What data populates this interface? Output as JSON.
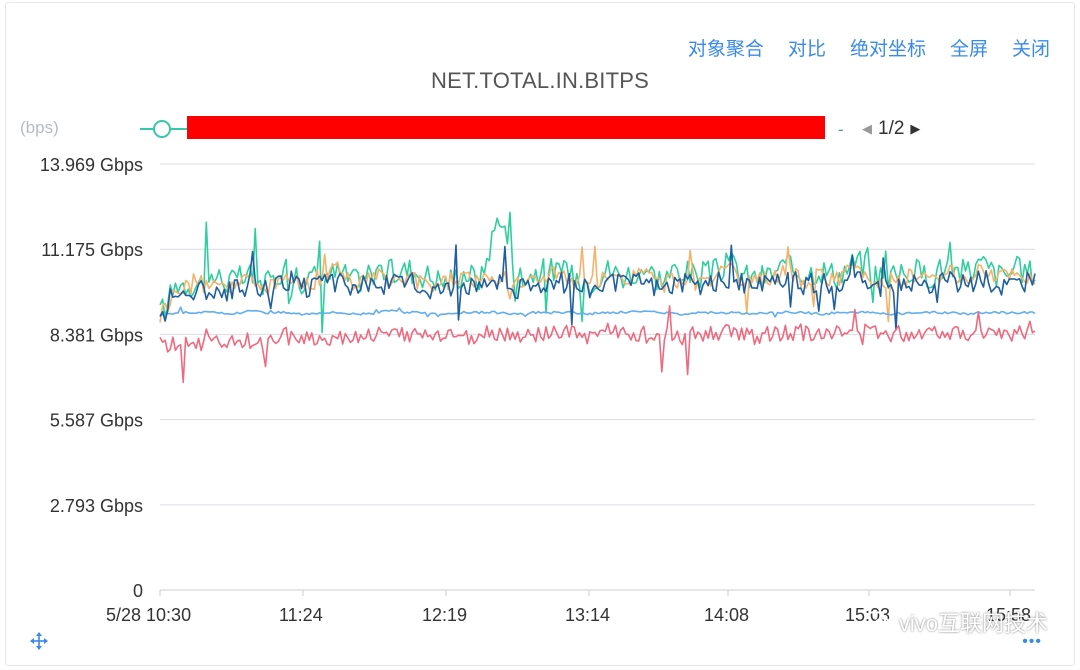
{
  "toolbar": {
    "aggregate": "对象聚合",
    "compare": "对比",
    "absolute": "绝对坐标",
    "fullscreen": "全屏",
    "close": "关闭"
  },
  "unit_label": "(bps)",
  "legend_dash": "-",
  "pager": {
    "text": "1/2"
  },
  "watermark": "vivo互联网技术",
  "colors": {
    "accent": "#3a8be8",
    "redaction": "#ff0000"
  },
  "icons": {
    "move": "move-icon",
    "more": "more-icon",
    "pager_prev": "caret-left-icon",
    "pager_next": "caret-right-icon",
    "legend_marker": "legend-circle-icon",
    "watermark": "wechat-icon"
  },
  "chart_data": {
    "type": "line",
    "title": "NET.TOTAL.IN.BITPS",
    "ylabel": "(bps)",
    "ylim": [
      0,
      13.969
    ],
    "y_unit": "Gbps",
    "yticks": [
      0,
      2.793,
      5.587,
      8.381,
      11.175,
      13.969
    ],
    "ytick_labels": [
      "0",
      "2.793 Gbps",
      "5.587 Gbps",
      "8.381 Gbps",
      "11.175 Gbps",
      "13.969 Gbps"
    ],
    "x_start": "10:30",
    "x_end": "15:55",
    "xtick_labels": [
      "5/28 10:30",
      "11:24",
      "12:19",
      "13:14",
      "14:08",
      "15:03",
      "15:58"
    ],
    "grid": true,
    "series": [
      {
        "color": "#2ecf9d",
        "values": [
          9.0,
          10.1,
          10.0,
          10.3,
          10.1,
          10.3,
          10.0,
          10.6,
          10.2,
          10.3,
          10.4,
          10.1,
          10.6,
          10.4,
          10.5,
          10.3,
          10.1,
          10.4,
          10.2,
          12.4,
          10.3,
          10.4,
          10.5,
          10.3,
          10.1,
          10.5,
          10.3,
          10.6,
          10.2,
          10.5,
          10.3,
          10.4,
          10.7,
          10.2,
          10.3,
          10.6,
          10.4,
          10.5,
          10.3,
          10.8,
          10.4,
          10.2,
          10.5,
          10.3,
          10.6,
          10.4,
          10.7,
          10.3,
          10.5,
          10.4
        ]
      },
      {
        "color": "#f5b26b",
        "values": [
          9.0,
          9.9,
          10.0,
          10.1,
          10.0,
          10.2,
          9.9,
          10.3,
          10.0,
          10.2,
          10.6,
          10.0,
          10.3,
          10.1,
          10.2,
          10.0,
          10.1,
          10.3,
          10.1,
          10.2,
          10.0,
          10.2,
          10.4,
          10.1,
          10.0,
          10.2,
          10.1,
          10.5,
          10.0,
          10.2,
          10.1,
          10.3,
          10.4,
          10.0,
          10.2,
          10.5,
          10.1,
          10.3,
          10.2,
          10.6,
          10.1,
          10.1,
          10.3,
          10.2,
          10.4,
          10.2,
          10.5,
          10.2,
          10.3,
          10.3
        ]
      },
      {
        "color": "#62aef0",
        "values": [
          9.0,
          9.1,
          9.1,
          9.1,
          9.05,
          9.15,
          9.1,
          9.1,
          9.05,
          9.1,
          9.1,
          9.05,
          9.1,
          9.15,
          9.1,
          9.1,
          9.05,
          9.1,
          9.1,
          9.1,
          9.05,
          9.1,
          9.1,
          9.1,
          9.05,
          9.1,
          9.1,
          9.15,
          9.1,
          9.05,
          9.1,
          9.1,
          9.1,
          9.05,
          9.1,
          9.1,
          9.1,
          9.05,
          9.1,
          9.1,
          9.1,
          9.05,
          9.1,
          9.1,
          9.1,
          9.05,
          9.1,
          9.1,
          9.1,
          9.1
        ]
      },
      {
        "color": "#1f5fa0",
        "values": [
          8.9,
          9.7,
          9.8,
          9.9,
          9.8,
          10.0,
          9.8,
          10.1,
          9.9,
          10.0,
          10.1,
          9.9,
          10.1,
          10.0,
          10.1,
          9.9,
          9.9,
          10.1,
          9.9,
          10.0,
          9.9,
          10.0,
          10.2,
          10.0,
          9.9,
          10.1,
          10.0,
          10.2,
          9.9,
          10.1,
          10.0,
          10.1,
          10.2,
          9.9,
          10.0,
          10.2,
          10.0,
          10.1,
          10.0,
          10.3,
          10.0,
          9.9,
          10.1,
          10.0,
          10.2,
          10.0,
          10.2,
          10.0,
          10.1,
          10.1
        ]
      },
      {
        "color": "#ef6a7f",
        "values": [
          8.1,
          8.0,
          8.1,
          8.1,
          8.2,
          8.2,
          8.1,
          8.3,
          8.3,
          8.2,
          8.3,
          8.3,
          8.4,
          8.3,
          8.4,
          8.3,
          8.4,
          8.3,
          8.4,
          8.4,
          8.3,
          8.4,
          8.4,
          8.4,
          8.3,
          8.5,
          8.4,
          8.4,
          8.3,
          8.4,
          8.4,
          8.4,
          8.5,
          8.3,
          8.4,
          8.4,
          8.4,
          8.5,
          8.4,
          8.4,
          8.5,
          8.4,
          8.4,
          8.5,
          8.5,
          8.4,
          8.5,
          8.5,
          8.4,
          8.6
        ]
      }
    ]
  }
}
